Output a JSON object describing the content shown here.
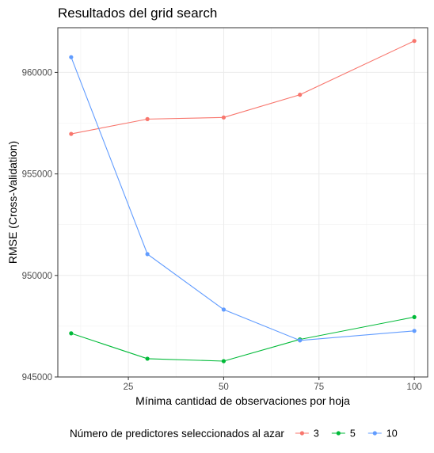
{
  "chart_data": {
    "type": "line",
    "title": "Resultados del grid search",
    "xlabel": "Mínima cantidad de observaciones por hoja",
    "ylabel": "RMSE (Cross-Validation)",
    "x": [
      10,
      30,
      50,
      70,
      100
    ],
    "x_ticks": [
      25,
      50,
      75,
      100
    ],
    "x_tick_labels": [
      "25",
      "50",
      "75",
      "100"
    ],
    "xlim": [
      6.5,
      103.5
    ],
    "y_ticks": [
      945000,
      950000,
      955000,
      960000
    ],
    "y_tick_labels": [
      "945000",
      "950000",
      "955000",
      "960000"
    ],
    "ylim": [
      945000,
      962200
    ],
    "grid": true,
    "legend_title": "Número de predictores seleccionados al azar",
    "legend_position": "bottom",
    "series": [
      {
        "name": "3",
        "color": "#F8766D",
        "values": [
          956970,
          957700,
          957780,
          958900,
          961550
        ]
      },
      {
        "name": "5",
        "color": "#00BA38",
        "values": [
          947150,
          945900,
          945780,
          946850,
          947950
        ]
      },
      {
        "name": "10",
        "color": "#619CFF",
        "values": [
          960750,
          951050,
          948320,
          946800,
          947270
        ]
      }
    ]
  }
}
